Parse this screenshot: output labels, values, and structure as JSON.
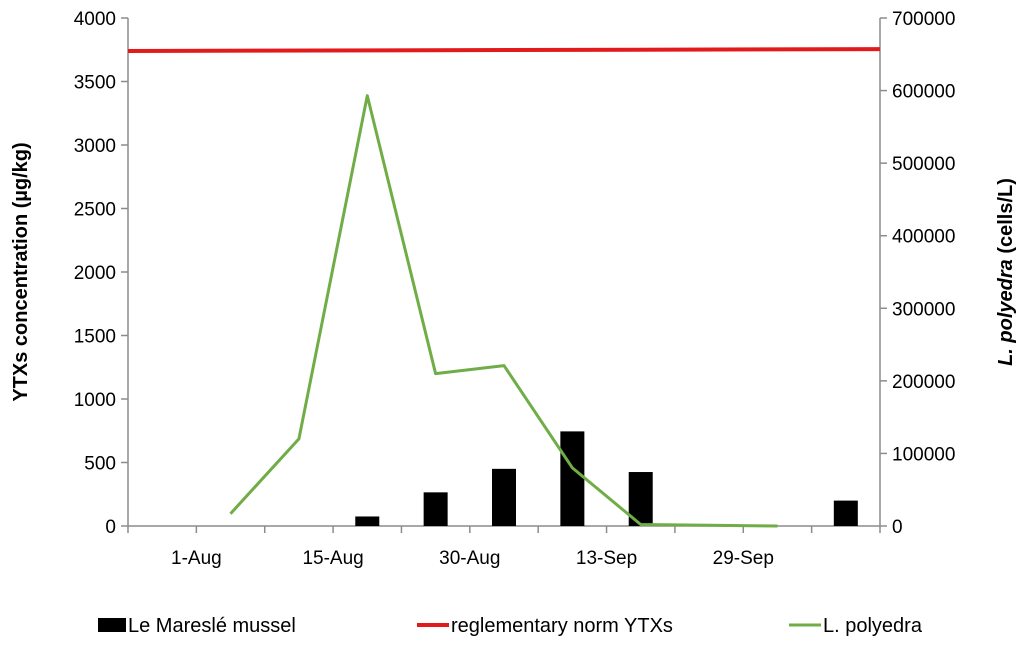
{
  "chart_data": {
    "type": "bar",
    "xlabel": "",
    "ylabel": "YTXs concentration (µg/kg)",
    "y2label_italic": "L. polyedra",
    "y2label_rest": " (cells/L)",
    "ylim": [
      0,
      4000
    ],
    "y2lim": [
      0,
      700000
    ],
    "yticks": [
      0,
      500,
      1000,
      1500,
      2000,
      2500,
      3000,
      3500,
      4000
    ],
    "y2ticks": [
      0,
      100000,
      200000,
      300000,
      400000,
      500000,
      600000,
      700000
    ],
    "x_categories": [
      "1-Aug",
      "15-Aug",
      "30-Aug",
      "13-Sep",
      "29-Sep"
    ],
    "grid": false,
    "legend_position": "bottom",
    "series": [
      {
        "name": "Le Mareslé mussel",
        "type": "bar",
        "axis": "left",
        "color": "#000000",
        "points": [
          {
            "slot": 3.5,
            "y": 75
          },
          {
            "slot": 4.5,
            "y": 265
          },
          {
            "slot": 5.5,
            "y": 450
          },
          {
            "slot": 6.5,
            "y": 745
          },
          {
            "slot": 7.5,
            "y": 425
          },
          {
            "slot": 10.5,
            "y": 200
          }
        ]
      },
      {
        "name": "reglementary norm YTXs",
        "type": "line",
        "axis": "left",
        "color": "#e31a1c",
        "points": [
          {
            "slot": 0,
            "y": 3740
          },
          {
            "slot": 11,
            "y": 3755
          }
        ]
      },
      {
        "name": "L. polyedra",
        "type": "line",
        "axis": "right",
        "color": "#70ad47",
        "points": [
          {
            "slot": 1.5,
            "y": 17000
          },
          {
            "slot": 2.5,
            "y": 120000
          },
          {
            "slot": 3.5,
            "y": 593000
          },
          {
            "slot": 4.5,
            "y": 210000
          },
          {
            "slot": 5.5,
            "y": 221000
          },
          {
            "slot": 6.5,
            "y": 80000
          },
          {
            "slot": 7.5,
            "y": 2000
          },
          {
            "slot": 8.5,
            "y": 1000
          },
          {
            "slot": 9.5,
            "y": 0
          }
        ]
      }
    ]
  }
}
